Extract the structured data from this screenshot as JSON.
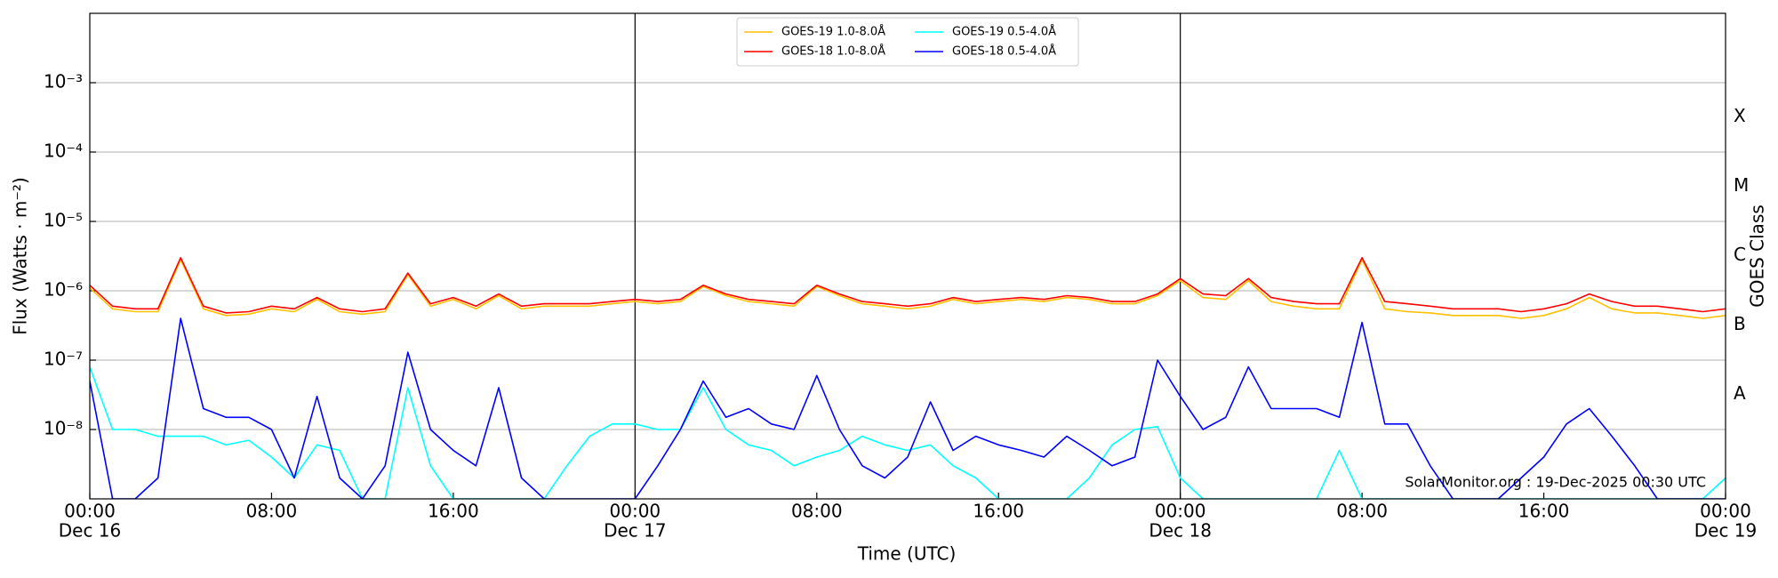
{
  "chart_data": {
    "type": "line",
    "y_label": "Flux (Watts · m⁻²)",
    "x_label": "Time (UTC)",
    "y2_label": "GOES Class",
    "annotation": "SolarMonitor.org : 19-Dec-2025 00:30 UTC",
    "log_y": true,
    "grid": true,
    "legend": "upper center",
    "legend_columns": 2,
    "x": [
      "Dec 16 00:00",
      "Dec 16 01:00",
      "Dec 16 02:00",
      "Dec 16 03:00",
      "Dec 16 04:00",
      "Dec 16 05:00",
      "Dec 16 06:00",
      "Dec 16 07:00",
      "Dec 16 08:00",
      "Dec 16 09:00",
      "Dec 16 10:00",
      "Dec 16 11:00",
      "Dec 16 12:00",
      "Dec 16 13:00",
      "Dec 16 14:00",
      "Dec 16 15:00",
      "Dec 16 16:00",
      "Dec 16 17:00",
      "Dec 16 18:00",
      "Dec 16 19:00",
      "Dec 16 20:00",
      "Dec 16 21:00",
      "Dec 16 22:00",
      "Dec 16 23:00",
      "Dec 17 00:00",
      "Dec 17 01:00",
      "Dec 17 02:00",
      "Dec 17 03:00",
      "Dec 17 04:00",
      "Dec 17 05:00",
      "Dec 17 06:00",
      "Dec 17 07:00",
      "Dec 17 08:00",
      "Dec 17 09:00",
      "Dec 17 10:00",
      "Dec 17 11:00",
      "Dec 17 12:00",
      "Dec 17 13:00",
      "Dec 17 14:00",
      "Dec 17 15:00",
      "Dec 17 16:00",
      "Dec 17 17:00",
      "Dec 17 18:00",
      "Dec 17 19:00",
      "Dec 17 20:00",
      "Dec 17 21:00",
      "Dec 17 22:00",
      "Dec 17 23:00",
      "Dec 18 00:00",
      "Dec 18 01:00",
      "Dec 18 02:00",
      "Dec 18 03:00",
      "Dec 18 04:00",
      "Dec 18 05:00",
      "Dec 18 06:00",
      "Dec 18 07:00",
      "Dec 18 08:00",
      "Dec 18 09:00",
      "Dec 18 10:00",
      "Dec 18 11:00",
      "Dec 18 12:00",
      "Dec 18 13:00",
      "Dec 18 14:00",
      "Dec 18 15:00",
      "Dec 18 16:00",
      "Dec 18 17:00",
      "Dec 18 18:00",
      "Dec 18 19:00",
      "Dec 18 20:00",
      "Dec 18 21:00",
      "Dec 18 22:00",
      "Dec 18 23:00",
      "Dec 19 00:00"
    ],
    "series": [
      {
        "name": "GOES-19 1.0-8.0Å",
        "color": "#ffc000",
        "values": [
          1.1e-06,
          5.5e-07,
          5e-07,
          5e-07,
          2.8e-06,
          5.5e-07,
          4.4e-07,
          4.6e-07,
          5.5e-07,
          5e-07,
          7.5e-07,
          5e-07,
          4.6e-07,
          5e-07,
          1.7e-06,
          6e-07,
          7.5e-07,
          5.5e-07,
          8.5e-07,
          5.5e-07,
          6e-07,
          6e-07,
          6e-07,
          6.5e-07,
          7e-07,
          6.5e-07,
          7e-07,
          1.15e-06,
          8.5e-07,
          7e-07,
          6.5e-07,
          6e-07,
          1.15e-06,
          8.5e-07,
          6.5e-07,
          6e-07,
          5.5e-07,
          6e-07,
          7.5e-07,
          6.5e-07,
          7e-07,
          7.5e-07,
          7e-07,
          8e-07,
          7.5e-07,
          6.5e-07,
          6.5e-07,
          8.5e-07,
          1.4e-06,
          8e-07,
          7.5e-07,
          1.4e-06,
          7e-07,
          6e-07,
          5.5e-07,
          5.5e-07,
          2.8e-06,
          5.5e-07,
          5e-07,
          4.8e-07,
          4.4e-07,
          4.4e-07,
          4.4e-07,
          4e-07,
          4.4e-07,
          5.5e-07,
          8e-07,
          5.5e-07,
          4.8e-07,
          4.8e-07,
          4.4e-07,
          4e-07,
          4.4e-07
        ]
      },
      {
        "name": "GOES-18 1.0-8.0Å",
        "color": "#ff0000",
        "values": [
          1.2e-06,
          6e-07,
          5.5e-07,
          5.5e-07,
          3e-06,
          6e-07,
          4.8e-07,
          5e-07,
          6e-07,
          5.5e-07,
          8e-07,
          5.5e-07,
          5e-07,
          5.5e-07,
          1.8e-06,
          6.5e-07,
          8e-07,
          6e-07,
          9e-07,
          6e-07,
          6.5e-07,
          6.5e-07,
          6.5e-07,
          7e-07,
          7.5e-07,
          7e-07,
          7.5e-07,
          1.2e-06,
          9e-07,
          7.5e-07,
          7e-07,
          6.5e-07,
          1.2e-06,
          9e-07,
          7e-07,
          6.5e-07,
          6e-07,
          6.5e-07,
          8e-07,
          7e-07,
          7.5e-07,
          8e-07,
          7.5e-07,
          8.5e-07,
          8e-07,
          7e-07,
          7e-07,
          9e-07,
          1.5e-06,
          9e-07,
          8.5e-07,
          1.5e-06,
          8e-07,
          7e-07,
          6.5e-07,
          6.5e-07,
          3e-06,
          7e-07,
          6.5e-07,
          6e-07,
          5.5e-07,
          5.5e-07,
          5.5e-07,
          5e-07,
          5.5e-07,
          6.5e-07,
          9e-07,
          7e-07,
          6e-07,
          6e-07,
          5.5e-07,
          5e-07,
          5.5e-07
        ]
      },
      {
        "name": "GOES-19 0.5-4.0Å",
        "color": "#00ffff",
        "values": [
          8e-08,
          1e-08,
          1e-08,
          8e-09,
          8e-09,
          8e-09,
          6e-09,
          7e-09,
          4e-09,
          2e-09,
          6e-09,
          5e-09,
          1e-09,
          1e-09,
          4e-08,
          3e-09,
          1e-09,
          1e-09,
          1e-09,
          1e-09,
          1e-09,
          3e-09,
          8e-09,
          1.2e-08,
          1.2e-08,
          1e-08,
          1e-08,
          4e-08,
          1e-08,
          6e-09,
          5e-09,
          3e-09,
          4e-09,
          5e-09,
          8e-09,
          6e-09,
          5e-09,
          6e-09,
          3e-09,
          2e-09,
          1e-09,
          1e-09,
          1e-09,
          1e-09,
          2e-09,
          6e-09,
          1e-08,
          1.1e-08,
          2e-09,
          1e-09,
          1e-09,
          1e-09,
          1e-09,
          1e-09,
          1e-09,
          5e-09,
          1e-09,
          1e-09,
          1e-09,
          1e-09,
          1e-09,
          1e-09,
          1e-09,
          1e-09,
          1e-09,
          1e-09,
          1e-09,
          1e-09,
          1e-09,
          1e-09,
          1e-09,
          1e-09,
          2e-09
        ]
      },
      {
        "name": "GOES-18 0.5-4.0Å",
        "color": "#0000ff",
        "values": [
          5e-08,
          1e-09,
          1e-09,
          2e-09,
          4e-07,
          2e-08,
          1.5e-08,
          1.5e-08,
          1e-08,
          2e-09,
          3e-08,
          2e-09,
          1e-09,
          3e-09,
          1.3e-07,
          1e-08,
          5e-09,
          3e-09,
          4e-08,
          2e-09,
          1e-09,
          1e-09,
          1e-09,
          1e-09,
          1e-09,
          3e-09,
          1e-08,
          5e-08,
          1.5e-08,
          2e-08,
          1.2e-08,
          1e-08,
          6e-08,
          1e-08,
          3e-09,
          2e-09,
          4e-09,
          2.5e-08,
          5e-09,
          8e-09,
          6e-09,
          5e-09,
          4e-09,
          8e-09,
          5e-09,
          3e-09,
          4e-09,
          1e-07,
          3e-08,
          1e-08,
          1.5e-08,
          8e-08,
          2e-08,
          2e-08,
          2e-08,
          1.5e-08,
          3.5e-07,
          1.2e-08,
          1.2e-08,
          3e-09,
          1e-09,
          1e-09,
          1e-09,
          2e-09,
          4e-09,
          1.2e-08,
          2e-08,
          8e-09,
          3e-09,
          1e-09,
          1e-09,
          1e-09,
          1e-09
        ]
      }
    ],
    "xlim": [
      "Dec 16 00:00",
      "Dec 19 00:00"
    ],
    "xticks": [
      {
        "value": "Dec 16 00:00",
        "label": "00:00",
        "sublabel": "Dec 16"
      },
      {
        "value": "Dec 16 08:00",
        "label": "08:00"
      },
      {
        "value": "Dec 16 16:00",
        "label": "16:00"
      },
      {
        "value": "Dec 17 00:00",
        "label": "00:00",
        "sublabel": "Dec 17"
      },
      {
        "value": "Dec 17 08:00",
        "label": "08:00"
      },
      {
        "value": "Dec 17 16:00",
        "label": "16:00"
      },
      {
        "value": "Dec 18 00:00",
        "label": "00:00",
        "sublabel": "Dec 18"
      },
      {
        "value": "Dec 18 08:00",
        "label": "08:00"
      },
      {
        "value": "Dec 18 16:00",
        "label": "16:00"
      },
      {
        "value": "Dec 19 00:00",
        "label": "00:00",
        "sublabel": "Dec 19"
      }
    ],
    "vlines": [
      "Dec 17 00:00",
      "Dec 18 00:00"
    ],
    "ylim": [
      1e-09,
      0.01
    ],
    "yticks": [
      {
        "value": 1e-08,
        "label": "10⁻⁸"
      },
      {
        "value": 1e-07,
        "label": "10⁻⁷"
      },
      {
        "value": 1e-06,
        "label": "10⁻⁶"
      },
      {
        "value": 1e-05,
        "label": "10⁻⁵"
      },
      {
        "value": 0.0001,
        "label": "10⁻⁴"
      },
      {
        "value": 0.001,
        "label": "10⁻³"
      }
    ],
    "y2lim": [
      1e-09,
      0.01
    ],
    "y2ticks": [
      {
        "value": 3.2e-08,
        "label": "A"
      },
      {
        "value": 3.2e-07,
        "label": "B"
      },
      {
        "value": 3.2e-06,
        "label": "C"
      },
      {
        "value": 3.2e-05,
        "label": "M"
      },
      {
        "value": 0.00032,
        "label": "X"
      }
    ]
  }
}
